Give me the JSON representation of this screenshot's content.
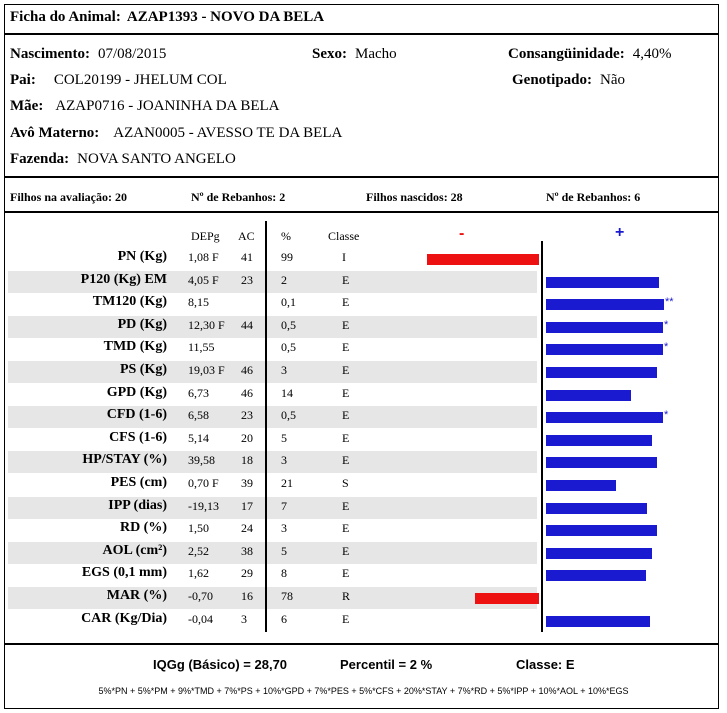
{
  "header": {
    "title_label": "Ficha do Animal:",
    "title_value": "AZAP1393 - NOVO DA BELA"
  },
  "animal": {
    "nascimento_label": "Nascimento:",
    "nascimento": "07/08/2015",
    "sexo_label": "Sexo:",
    "sexo": "Macho",
    "consang_label": "Consangüinidade:",
    "consang": "4,40%",
    "pai_label": "Pai:",
    "pai": "COL20199 - JHELUM COL",
    "genotipado_label": "Genotipado:",
    "genotipado": "Não",
    "mae_label": "Mãe:",
    "mae": "AZAP0716 - JOANINHA DA BELA",
    "avo_label": "Avô Materno:",
    "avo": "AZAN0005 - AVESSO TE DA BELA",
    "fazenda_label": "Fazenda:",
    "fazenda": "NOVA SANTO ANGELO"
  },
  "stats": {
    "filhos_avaliacao": "Filhos na avaliação: 20",
    "rebanhos_1": "Nº de Rebanhos: 2",
    "filhos_nascidos": "Filhos nascidos: 28",
    "rebanhos_2": "Nº de Rebanhos: 6"
  },
  "table": {
    "headers": {
      "depg": "DEPg",
      "ac": "AC",
      "pct": "%",
      "classe": "Classe",
      "minus": "-",
      "plus": "+"
    },
    "rows": [
      {
        "trait": "PN (Kg)",
        "depg": "1,08 F",
        "ac": "41",
        "pct": "99",
        "classe": "I",
        "bar": -1.0,
        "stars": ""
      },
      {
        "trait": "P120 (Kg) EM",
        "depg": "4,05 F",
        "ac": "23",
        "pct": "2",
        "classe": "E",
        "bar": 0.96,
        "stars": ""
      },
      {
        "trait": "TM120 (Kg)",
        "depg": "8,15",
        "ac": "",
        "pct": "0,1",
        "classe": "E",
        "bar": 1.0,
        "stars": "**"
      },
      {
        "trait": "PD (Kg)",
        "depg": "12,30 F",
        "ac": "44",
        "pct": "0,5",
        "classe": "E",
        "bar": 0.99,
        "stars": "*"
      },
      {
        "trait": "TMD (Kg)",
        "depg": "11,55",
        "ac": "",
        "pct": "0,5",
        "classe": "E",
        "bar": 0.99,
        "stars": "*"
      },
      {
        "trait": "PS (Kg)",
        "depg": "19,03 F",
        "ac": "46",
        "pct": "3",
        "classe": "E",
        "bar": 0.94,
        "stars": ""
      },
      {
        "trait": "GPD (Kg)",
        "depg": "6,73",
        "ac": "46",
        "pct": "14",
        "classe": "E",
        "bar": 0.72,
        "stars": ""
      },
      {
        "trait": "CFD (1-6)",
        "depg": "6,58",
        "ac": "23",
        "pct": "0,5",
        "classe": "E",
        "bar": 0.99,
        "stars": "*"
      },
      {
        "trait": "CFS (1-6)",
        "depg": "5,14",
        "ac": "20",
        "pct": "5",
        "classe": "E",
        "bar": 0.9,
        "stars": ""
      },
      {
        "trait": "HP/STAY (%)",
        "depg": "39,58",
        "ac": "18",
        "pct": "3",
        "classe": "E",
        "bar": 0.94,
        "stars": ""
      },
      {
        "trait": "PES (cm)",
        "depg": "0,70 F",
        "ac": "39",
        "pct": "21",
        "classe": "S",
        "bar": 0.59,
        "stars": ""
      },
      {
        "trait": "IPP (dias)",
        "depg": "-19,13",
        "ac": "17",
        "pct": "7",
        "classe": "E",
        "bar": 0.86,
        "stars": ""
      },
      {
        "trait": "RD (%)",
        "depg": "1,50",
        "ac": "24",
        "pct": "3",
        "classe": "E",
        "bar": 0.94,
        "stars": ""
      },
      {
        "trait": "AOL (cm²)",
        "depg": "2,52",
        "ac": "38",
        "pct": "5",
        "classe": "E",
        "bar": 0.9,
        "stars": ""
      },
      {
        "trait": "EGS (0,1 mm)",
        "depg": "1,62",
        "ac": "29",
        "pct": "8",
        "classe": "E",
        "bar": 0.85,
        "stars": ""
      },
      {
        "trait": "MAR (%)",
        "depg": "-0,70",
        "ac": "16",
        "pct": "78",
        "classe": "R",
        "bar": -0.57,
        "stars": ""
      },
      {
        "trait": "CAR (Kg/Dia)",
        "depg": "-0,04",
        "ac": "3",
        "pct": "6",
        "classe": "E",
        "bar": 0.88,
        "stars": ""
      }
    ]
  },
  "colors": {
    "negative_bar": "#ee1111",
    "positive_bar": "#1a1ad0",
    "alt_row": "#e6e6e6"
  },
  "footer": {
    "iqgg": "IQGg (Básico) = 28,70",
    "percentil": "Percentil = 2 %",
    "classe": "Classe: E",
    "formula": "5%*PN + 5%*PM + 9%*TMD + 7%*PS + 10%*GPD + 7%*PES + 5%*CFS + 20%*STAY + 7%*RD + 5%*IPP + 10%*AOL + 10%*EGS"
  }
}
